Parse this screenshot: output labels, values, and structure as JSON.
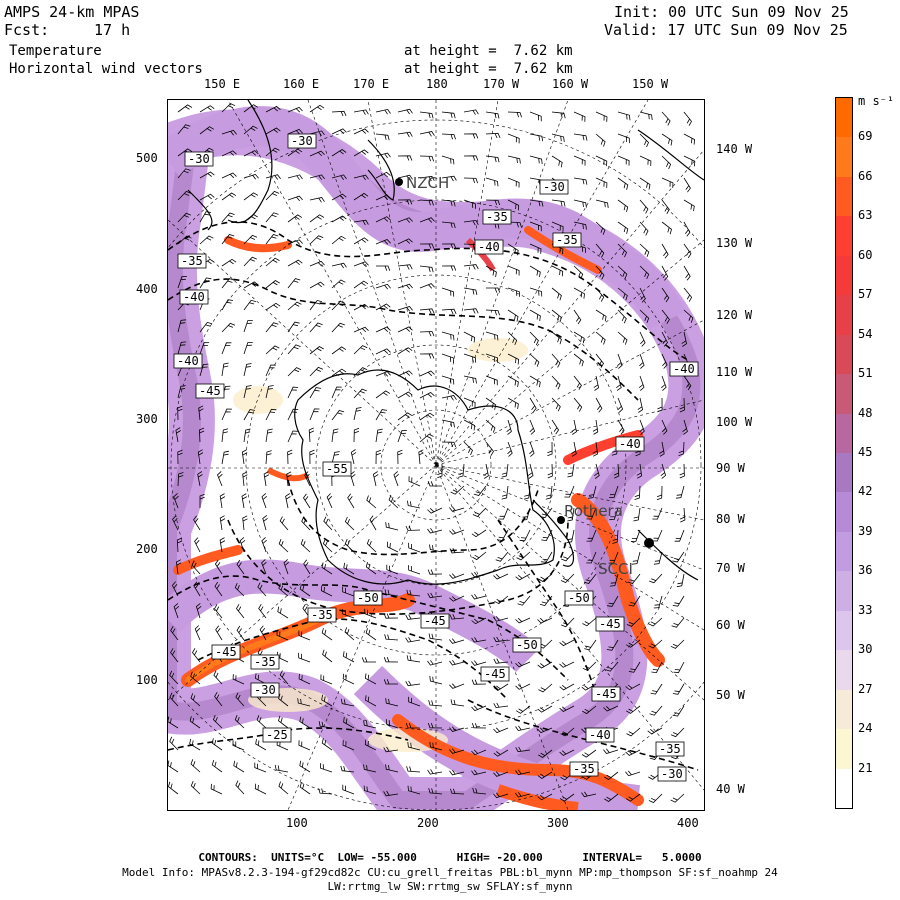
{
  "header": {
    "model": "AMPS 24-km MPAS",
    "fcst_label": "Fcst:",
    "fcst_value": "17 h",
    "init": "Init: 00 UTC Sun 09 Nov 25",
    "valid": "Valid: 17 UTC Sun 09 Nov 25",
    "field1": "Temperature",
    "field2": "Horizontal wind vectors",
    "height1": "at height =  7.62 km",
    "height2": "at height =  7.62 km"
  },
  "axes": {
    "top_labels": [
      "150 E",
      "160 E",
      "170 E",
      "180",
      "170 W",
      "160 W",
      "150 W"
    ],
    "right_labels": [
      "140 W",
      "130 W",
      "120 W",
      "110 W",
      "100 W",
      "90 W",
      "80 W",
      "70 W",
      "60 W",
      "50 W",
      "40 W"
    ],
    "left_ticks": [
      "500",
      "400",
      "300",
      "200",
      "100"
    ],
    "bottom_ticks": [
      "100",
      "200",
      "300",
      "400"
    ]
  },
  "colorbar": {
    "unit": "m s⁻¹",
    "labels": [
      "69",
      "66",
      "63",
      "60",
      "57",
      "54",
      "51",
      "48",
      "45",
      "42",
      "39",
      "36",
      "33",
      "30",
      "27",
      "24",
      "21"
    ],
    "colors": [
      "#ff6a00",
      "#ff7a1a",
      "#ff5a20",
      "#ff4030",
      "#f53a3a",
      "#e84048",
      "#d84a58",
      "#c85a78",
      "#b868a0",
      "#a878c0",
      "#b68ad6",
      "#c29ce0",
      "#cdafe6",
      "#dcc6ee",
      "#ead8ec",
      "#f6ead8",
      "#fcf6d2",
      "#ffffff"
    ]
  },
  "map_labels": {
    "stations": [
      "NZCH",
      "Rothera",
      "SCCI"
    ],
    "contour_labels": [
      "-30",
      "-30",
      "-30",
      "-35",
      "-40",
      "-35",
      "-35",
      "-40",
      "-40",
      "-40",
      "-45",
      "-55",
      "-40",
      "-35",
      "-50",
      "-45",
      "-50",
      "-50",
      "-45",
      "-45",
      "-45",
      "-45",
      "-35",
      "-30",
      "-40",
      "-25",
      "-35",
      "-35",
      "-30"
    ]
  },
  "footer": {
    "contours": "CONTOURS:  UNITS=°C  LOW= -55.000      HIGH= -20.000      INTERVAL=   5.0000",
    "model_info": "Model Info: MPASv8.2.3-194-gf29cd82c CU:cu_grell_freitas PBL:bl_mynn MP:mp_thompson SF:sf_noahmp 24",
    "model_info2": "LW:rrtmg_lw SW:rrtmg_sw SFLAY:sf_mynn"
  }
}
